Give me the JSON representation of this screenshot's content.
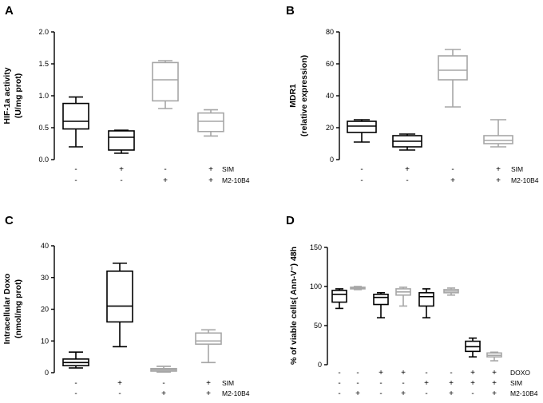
{
  "figure": {
    "colors": {
      "black": "#000000",
      "gray": "#a6a6a6"
    }
  },
  "chart_data": [
    {
      "type": "boxplot",
      "panel": "A",
      "ylabel": [
        "HIF-1a activity",
        "(U/mg prot)"
      ],
      "ylim": [
        0,
        2
      ],
      "yticks": [
        "0.0",
        "0.5",
        "1.0",
        "1.5",
        "2.0"
      ],
      "ytick_values": [
        0,
        0.5,
        1.0,
        1.5,
        2.0
      ],
      "boxes": [
        {
          "min": 0.2,
          "q1": 0.48,
          "median": 0.6,
          "q3": 0.88,
          "max": 0.98,
          "color": "black"
        },
        {
          "min": 0.1,
          "q1": 0.15,
          "median": 0.35,
          "q3": 0.45,
          "max": 0.46,
          "color": "black"
        },
        {
          "min": 0.8,
          "q1": 0.92,
          "median": 1.25,
          "q3": 1.52,
          "max": 1.55,
          "color": "gray"
        },
        {
          "min": 0.37,
          "q1": 0.44,
          "median": 0.6,
          "q3": 0.73,
          "max": 0.78,
          "color": "gray"
        }
      ],
      "conditions": [
        {
          "label": "SIM",
          "signs": [
            "-",
            "+",
            "-",
            "+"
          ]
        },
        {
          "label": "M2-10B4",
          "signs": [
            "-",
            "-",
            "+",
            "+"
          ]
        }
      ]
    },
    {
      "type": "boxplot",
      "panel": "B",
      "ylabel": [
        "MDR1",
        "(relative expression)"
      ],
      "ylim": [
        0,
        80
      ],
      "yticks": [
        "0",
        "20",
        "40",
        "60",
        "80"
      ],
      "ytick_values": [
        0,
        20,
        40,
        60,
        80
      ],
      "boxes": [
        {
          "min": 11,
          "q1": 17,
          "median": 21,
          "q3": 24,
          "max": 25,
          "color": "black"
        },
        {
          "min": 6,
          "q1": 8,
          "median": 11.5,
          "q3": 15,
          "max": 16,
          "color": "black"
        },
        {
          "min": 33,
          "q1": 50,
          "median": 56,
          "q3": 65,
          "max": 69,
          "color": "gray"
        },
        {
          "min": 8,
          "q1": 10,
          "median": 12,
          "q3": 15,
          "max": 25,
          "color": "gray"
        }
      ],
      "conditions": [
        {
          "label": "SIM",
          "signs": [
            "-",
            "+",
            "-",
            "+"
          ]
        },
        {
          "label": "M2-10B4",
          "signs": [
            "-",
            "-",
            "+",
            "+"
          ]
        }
      ]
    },
    {
      "type": "boxplot",
      "panel": "C",
      "ylabel": [
        "Intracellular Doxo",
        "(nmol/mg prot)"
      ],
      "ylim": [
        0,
        40
      ],
      "yticks": [
        "0",
        "10",
        "20",
        "30",
        "40"
      ],
      "ytick_values": [
        0,
        10,
        20,
        30,
        40
      ],
      "boxes": [
        {
          "min": 1.5,
          "q1": 2.2,
          "median": 3.2,
          "q3": 4.3,
          "max": 6.5,
          "color": "black"
        },
        {
          "min": 8.2,
          "q1": 16,
          "median": 21,
          "q3": 32,
          "max": 34.5,
          "color": "black"
        },
        {
          "min": 0.2,
          "q1": 0.5,
          "median": 0.9,
          "q3": 1.3,
          "max": 2.0,
          "color": "gray"
        },
        {
          "min": 3.2,
          "q1": 9,
          "median": 10,
          "q3": 12.5,
          "max": 13.5,
          "color": "gray"
        }
      ],
      "conditions": [
        {
          "label": "SIM",
          "signs": [
            "-",
            "+",
            "-",
            "+"
          ]
        },
        {
          "label": "M2-10B4",
          "signs": [
            "-",
            "-",
            "+",
            "+"
          ]
        }
      ]
    },
    {
      "type": "boxplot",
      "panel": "D",
      "ylabel": [
        "% of viable cells( Ann-V⁻) 48h"
      ],
      "ylim": [
        0,
        150
      ],
      "yticks": [
        "0",
        "50",
        "100",
        "150"
      ],
      "ytick_values": [
        0,
        50,
        100,
        150
      ],
      "boxes": [
        {
          "min": 72,
          "q1": 80,
          "median": 90,
          "q3": 95,
          "max": 97,
          "color": "black"
        },
        {
          "min": 96,
          "q1": 97,
          "median": 98,
          "q3": 99,
          "max": 100,
          "color": "gray"
        },
        {
          "min": 60,
          "q1": 77,
          "median": 86,
          "q3": 90,
          "max": 92,
          "color": "black"
        },
        {
          "min": 75,
          "q1": 89,
          "median": 93,
          "q3": 97,
          "max": 99,
          "color": "gray"
        },
        {
          "min": 60,
          "q1": 75,
          "median": 87,
          "q3": 92,
          "max": 97,
          "color": "black"
        },
        {
          "min": 89,
          "q1": 92,
          "median": 94,
          "q3": 96,
          "max": 98,
          "color": "gray"
        },
        {
          "min": 10,
          "q1": 17,
          "median": 23,
          "q3": 30,
          "max": 34,
          "color": "black"
        },
        {
          "min": 5,
          "q1": 10,
          "median": 12,
          "q3": 15,
          "max": 16,
          "color": "gray"
        }
      ],
      "conditions": [
        {
          "label": "DOXO",
          "signs": [
            "-",
            "-",
            "+",
            "+",
            "-",
            "-",
            "+",
            "+"
          ]
        },
        {
          "label": "SIM",
          "signs": [
            "-",
            "-",
            "-",
            "-",
            "+",
            "+",
            "+",
            "+"
          ]
        },
        {
          "label": "M2-10B4",
          "signs": [
            "-",
            "+",
            "-",
            "+",
            "-",
            "+",
            "-",
            "+"
          ]
        }
      ]
    }
  ]
}
